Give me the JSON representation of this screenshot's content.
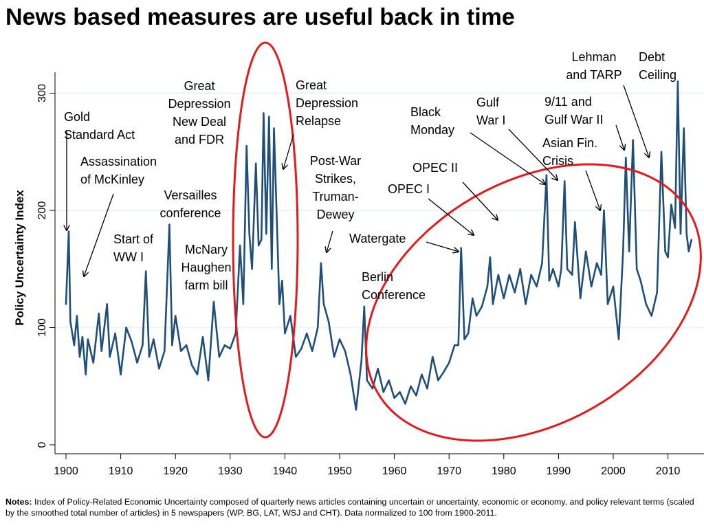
{
  "title": "News based measures are useful back in time",
  "notes": {
    "label": "Notes:",
    "text": "Index of Policy-Related Economic Uncertainty composed of quarterly news articles containing uncertain or uncertainty, economic or economy, and policy relevant terms (scaled by the smoothed total number of articles) in 5 newspapers (WP, BG, LAT, WSJ and CHT). Data normalized to 100 from 1900-2011."
  },
  "colors": {
    "series": "#1f4e79",
    "highlight": "#e31a1c",
    "grid": "#e8eef4"
  },
  "chart_data": {
    "type": "line",
    "ylabel": "Policy Uncertainty Index",
    "xlim": [
      1899,
      2016
    ],
    "ylim": [
      -5,
      320
    ],
    "x_ticks": [
      1900,
      1910,
      1920,
      1930,
      1940,
      1950,
      1960,
      1970,
      1980,
      1990,
      2000,
      2010
    ],
    "y_ticks": [
      0,
      100,
      200,
      300
    ],
    "grid": true,
    "series": [
      {
        "name": "",
        "points": [
          [
            1900,
            120
          ],
          [
            1900.5,
            182
          ],
          [
            1900.8,
            105
          ],
          [
            1901.5,
            85
          ],
          [
            1902,
            110
          ],
          [
            1902.5,
            75
          ],
          [
            1903,
            92
          ],
          [
            1903.6,
            60
          ],
          [
            1904,
            90
          ],
          [
            1905,
            70
          ],
          [
            1906,
            112
          ],
          [
            1906.5,
            80
          ],
          [
            1907.5,
            120
          ],
          [
            1908,
            75
          ],
          [
            1909,
            95
          ],
          [
            1910,
            60
          ],
          [
            1911,
            100
          ],
          [
            1912,
            88
          ],
          [
            1913,
            70
          ],
          [
            1914,
            85
          ],
          [
            1914.6,
            148
          ],
          [
            1915.2,
            75
          ],
          [
            1916,
            90
          ],
          [
            1917,
            65
          ],
          [
            1918,
            80
          ],
          [
            1918.9,
            188
          ],
          [
            1919.4,
            85
          ],
          [
            1920,
            110
          ],
          [
            1921,
            80
          ],
          [
            1922,
            85
          ],
          [
            1923,
            68
          ],
          [
            1924,
            60
          ],
          [
            1925,
            92
          ],
          [
            1926,
            55
          ],
          [
            1927,
            122
          ],
          [
            1928,
            75
          ],
          [
            1929,
            85
          ],
          [
            1930,
            82
          ],
          [
            1931,
            95
          ],
          [
            1931.8,
            170
          ],
          [
            1932.4,
            120
          ],
          [
            1933,
            255
          ],
          [
            1933.5,
            180
          ],
          [
            1934,
            150
          ],
          [
            1934.7,
            240
          ],
          [
            1935.2,
            170
          ],
          [
            1935.7,
            175
          ],
          [
            1936.1,
            283
          ],
          [
            1936.6,
            180
          ],
          [
            1937.1,
            280
          ],
          [
            1937.6,
            150
          ],
          [
            1938,
            270
          ],
          [
            1938.6,
            180
          ],
          [
            1939,
            120
          ],
          [
            1939.5,
            140
          ],
          [
            1940,
            95
          ],
          [
            1941,
            110
          ],
          [
            1942,
            75
          ],
          [
            1943,
            82
          ],
          [
            1944,
            95
          ],
          [
            1945,
            80
          ],
          [
            1946,
            100
          ],
          [
            1946.6,
            155
          ],
          [
            1947.1,
            120
          ],
          [
            1948,
            105
          ],
          [
            1949,
            75
          ],
          [
            1950,
            90
          ],
          [
            1951,
            80
          ],
          [
            1952,
            60
          ],
          [
            1953,
            30
          ],
          [
            1954,
            72
          ],
          [
            1954.5,
            118
          ],
          [
            1955,
            55
          ],
          [
            1956,
            48
          ],
          [
            1957,
            65
          ],
          [
            1958,
            45
          ],
          [
            1959,
            55
          ],
          [
            1960,
            40
          ],
          [
            1961,
            45
          ],
          [
            1962,
            35
          ],
          [
            1963,
            50
          ],
          [
            1964,
            42
          ],
          [
            1965,
            60
          ],
          [
            1966,
            48
          ],
          [
            1967,
            75
          ],
          [
            1968,
            55
          ],
          [
            1969,
            62
          ],
          [
            1970,
            70
          ],
          [
            1971,
            85
          ],
          [
            1971.7,
            85
          ],
          [
            1972.2,
            168
          ],
          [
            1972.8,
            90
          ],
          [
            1973.5,
            95
          ],
          [
            1974.3,
            125
          ],
          [
            1975,
            110
          ],
          [
            1976,
            118
          ],
          [
            1977,
            135
          ],
          [
            1977.5,
            160
          ],
          [
            1978,
            120
          ],
          [
            1979,
            145
          ],
          [
            1980,
            125
          ],
          [
            1981,
            145
          ],
          [
            1982,
            130
          ],
          [
            1983,
            150
          ],
          [
            1984,
            120
          ],
          [
            1985,
            145
          ],
          [
            1986,
            135
          ],
          [
            1987,
            155
          ],
          [
            1987.8,
            230
          ],
          [
            1988.3,
            140
          ],
          [
            1989,
            150
          ],
          [
            1990,
            135
          ],
          [
            1990.5,
            150
          ],
          [
            1991.1,
            225
          ],
          [
            1991.6,
            150
          ],
          [
            1992.5,
            145
          ],
          [
            1993,
            190
          ],
          [
            1994,
            125
          ],
          [
            1995,
            165
          ],
          [
            1996,
            135
          ],
          [
            1997,
            155
          ],
          [
            1997.8,
            145
          ],
          [
            1998.3,
            200
          ],
          [
            1999,
            120
          ],
          [
            2000,
            135
          ],
          [
            2001,
            90
          ],
          [
            2001.8,
            165
          ],
          [
            2002.3,
            245
          ],
          [
            2002.9,
            165
          ],
          [
            2003.6,
            260
          ],
          [
            2004.3,
            150
          ],
          [
            2005,
            140
          ],
          [
            2006,
            120
          ],
          [
            2007,
            110
          ],
          [
            2008,
            130
          ],
          [
            2008.8,
            250
          ],
          [
            2009.5,
            165
          ],
          [
            2010,
            160
          ],
          [
            2010.6,
            205
          ],
          [
            2011.3,
            185
          ],
          [
            2011.8,
            310
          ],
          [
            2012.3,
            180
          ],
          [
            2012.9,
            270
          ],
          [
            2013.4,
            180
          ],
          [
            2013.8,
            165
          ],
          [
            2014.3,
            175
          ]
        ]
      }
    ],
    "annotations": [
      {
        "lines": [
          "Gold",
          "Standard Act"
        ]
      },
      {
        "lines": [
          "Assassination",
          "of McKinley"
        ]
      },
      {
        "lines": [
          "Start of",
          "WW I"
        ]
      },
      {
        "lines": [
          "Versailles",
          "conference"
        ]
      },
      {
        "lines": [
          "McNary",
          "Haughen",
          "farm bill"
        ]
      },
      {
        "lines": [
          "Great",
          "Depression",
          "New Deal",
          "and FDR"
        ]
      },
      {
        "lines": [
          "Great",
          "Depression",
          "Relapse"
        ]
      },
      {
        "lines": [
          "Post-War",
          "Strikes,",
          "Truman-",
          "Dewey"
        ]
      },
      {
        "lines": [
          "Watergate"
        ]
      },
      {
        "lines": [
          "Berlin",
          "Conference"
        ]
      },
      {
        "lines": [
          "OPEC I"
        ]
      },
      {
        "lines": [
          "OPEC II"
        ]
      },
      {
        "lines": [
          "Black",
          "Monday"
        ]
      },
      {
        "lines": [
          "Gulf",
          "War I"
        ]
      },
      {
        "lines": [
          "9/11 and",
          "Gulf War II"
        ]
      },
      {
        "lines": [
          "Asian Fin.",
          "Crisis"
        ]
      },
      {
        "lines": [
          "Lehman",
          "and TARP"
        ]
      },
      {
        "lines": [
          "Debt",
          "Ceiling"
        ]
      }
    ]
  }
}
